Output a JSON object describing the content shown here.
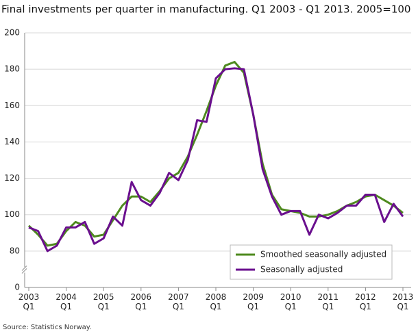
{
  "chart_data": {
    "type": "line",
    "title": "Final investments per quarter in manufacturing. Q1 2003 - Q1 2013. 2005=100",
    "source": "Source: Statistics Norway.",
    "categories": [
      "Q1 2003",
      null,
      null,
      null,
      "Q1 2004",
      null,
      null,
      null,
      "Q1 2005",
      null,
      null,
      null,
      "Q1 2006",
      null,
      null,
      null,
      "Q1 2007",
      null,
      null,
      null,
      "Q1 2008",
      null,
      null,
      null,
      "Q1 2009",
      null,
      null,
      null,
      "Q1 2010",
      null,
      null,
      null,
      "Q1 2011",
      null,
      null,
      null,
      "Q1 2012",
      null,
      null,
      null,
      "Q1 2013"
    ],
    "series": [
      {
        "name": "Smoothed seasonally adjusted",
        "color": "#4e8a1e",
        "values": [
          94,
          89,
          83,
          84,
          91,
          96,
          94,
          88,
          89,
          97,
          105,
          110,
          110,
          107,
          113,
          120,
          123,
          132,
          144,
          157,
          171,
          182,
          184,
          178,
          155,
          128,
          111,
          103,
          102,
          101,
          99,
          99,
          100,
          102,
          105,
          107,
          110,
          111,
          108,
          105,
          101
        ]
      },
      {
        "name": "Seasonally adjusted",
        "color": "#6a0f8e",
        "values": [
          93,
          91,
          80,
          83,
          93,
          93,
          96,
          84,
          87,
          99,
          94,
          118,
          108,
          105,
          112,
          123,
          119,
          130,
          152,
          151,
          175,
          180,
          180.5,
          180,
          155,
          125,
          110,
          100,
          102,
          102,
          89,
          100,
          98,
          101,
          105,
          105,
          111,
          111,
          96,
          106,
          99
        ]
      }
    ],
    "ylim": [
      0,
      200
    ],
    "yticks": [
      0,
      80,
      100,
      120,
      140,
      160,
      180,
      200
    ],
    "y_break": [
      0,
      80
    ],
    "grid": true,
    "legend": "lower-right"
  }
}
